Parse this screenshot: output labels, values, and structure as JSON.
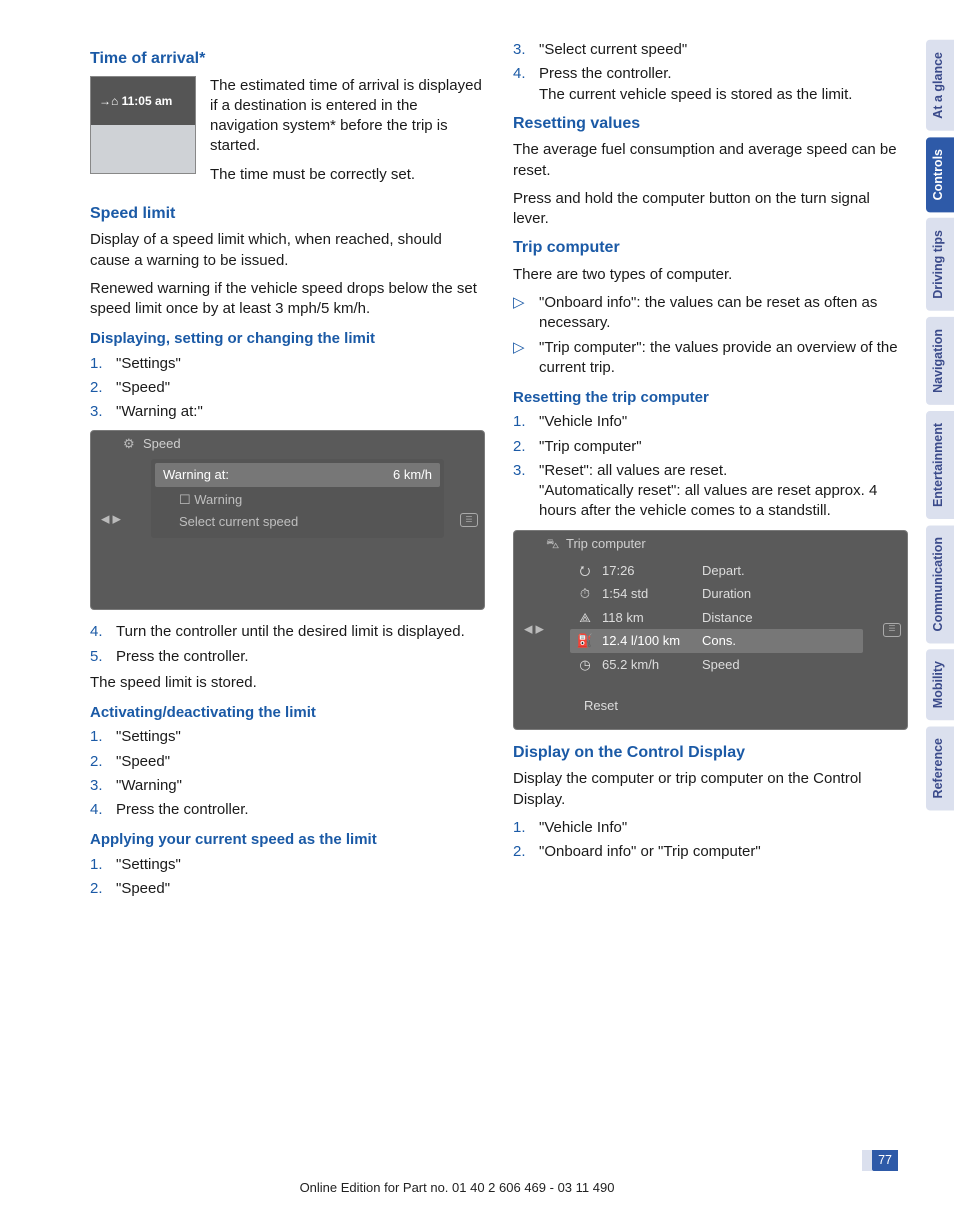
{
  "tabs": [
    "At a glance",
    "Controls",
    "Driving tips",
    "Navigation",
    "Entertainment",
    "Communication",
    "Mobility",
    "Reference"
  ],
  "active_tab_index": 1,
  "page_number": "77",
  "footer": "Online Edition for Part no. 01 40 2 606 469 - 03 11 490",
  "left": {
    "h_time": "Time of arrival*",
    "arrival_badge": "→⌂ 11:05 am",
    "arrival_p1": "The estimated time of arrival is displayed if a destination is entered in the navigation system* before the trip is started.",
    "arrival_p2": "The time must be correctly set.",
    "h_speed": "Speed limit",
    "speed_p1": "Display of a speed limit which, when reached, should cause a warning to be issued.",
    "speed_p2": "Renewed warning if the vehicle speed drops below the set speed limit once by at least 3 mph/5 km/h.",
    "h_disp": "Displaying, setting or changing the limit",
    "disp_steps": [
      "\"Settings\"",
      "\"Speed\"",
      "\"Warning at:\""
    ],
    "screen1": {
      "title": "Speed",
      "row1_l": "Warning at:",
      "row1_r": "6 km/h",
      "row2": "☐  Warning",
      "row3": "Select current speed"
    },
    "step4": "Turn the controller until the desired limit is displayed.",
    "step5": "Press the controller.",
    "after5": "The speed limit is stored.",
    "h_act": "Activating/deactivating the limit",
    "act_steps": [
      "\"Settings\"",
      "\"Speed\"",
      "\"Warning\"",
      "Press the controller."
    ],
    "h_apply": "Applying your current speed as the limit",
    "apply_steps": [
      "\"Settings\"",
      "\"Speed\""
    ]
  },
  "right": {
    "cont_steps": [
      "\"Select current speed\"",
      "Press the controller."
    ],
    "cont_note": "The current vehicle speed is stored as the limit.",
    "h_reset": "Resetting values",
    "reset_p1": "The average fuel consumption and average speed can be reset.",
    "reset_p2": "Press and hold the computer button on the turn signal lever.",
    "h_trip": "Trip computer",
    "trip_p": "There are two types of computer.",
    "trip_bullets": [
      "\"Onboard info\": the values can be reset as often as necessary.",
      "\"Trip computer\": the values provide an overview of the current trip."
    ],
    "h_rtc": "Resetting the trip computer",
    "rtc_steps": [
      "\"Vehicle Info\"",
      "\"Trip computer\"",
      "\"Reset\": all values are reset."
    ],
    "rtc_note": "\"Automatically reset\": all values are reset approx. 4 hours after the vehicle comes to a standstill.",
    "screen2": {
      "title": "Trip computer",
      "rows": [
        {
          "icon": "⭮",
          "val": "17:26",
          "lab": "Depart."
        },
        {
          "icon": "⏱",
          "val": "1:54 std",
          "lab": "Duration"
        },
        {
          "icon": "⟁",
          "val": "118 km",
          "lab": "Distance"
        },
        {
          "icon": "⛽",
          "val": "12.4 l/100 km",
          "lab": "Cons."
        },
        {
          "icon": "◷",
          "val": "65.2 km/h",
          "lab": "Speed"
        }
      ],
      "reset": "Reset"
    },
    "h_dcd": "Display on the Control Display",
    "dcd_p": "Display the computer or trip computer on the Control Display.",
    "dcd_steps": [
      "\"Vehicle Info\"",
      "\"Onboard info\" or \"Trip computer\""
    ]
  }
}
